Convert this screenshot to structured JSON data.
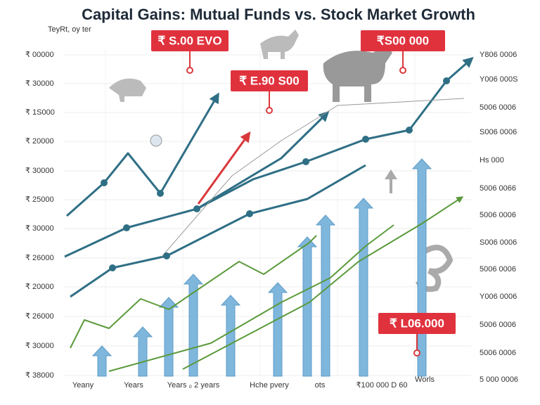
{
  "header": {
    "title": "Capital Gains: Mutual Funds vs. Stock Market Growth",
    "subtitle": "TeyRt, oy ter"
  },
  "left_labels": [
    "₹ 00000",
    "₹ 30000",
    "₹ 1S000",
    "₹ 20000",
    "₹ 30000",
    "₹ 25000",
    "₹ 30000",
    "₹ 26000",
    "₹ 20000",
    "₹ 26000",
    "₹ 30000",
    "₹ 38000"
  ],
  "right_labels": [
    "Y806 0006",
    "Y006 000S",
    "5006 0006",
    "S006 0006",
    "Hs 000",
    "5006 0066",
    "5006 0006",
    "S006 0006",
    "5006 0006",
    "Y006 0006",
    "5006 0006",
    "5006 0006",
    "5 000 0006"
  ],
  "bottom_labels": [
    "Yeany",
    "Years",
    "Years ₀ 2 years",
    "Hche pvery",
    "ots",
    "₹100 000 D 60",
    "Worls"
  ],
  "callouts": [
    "₹ S.00 EVO",
    "₹ E.90 S00",
    "₹S00 000",
    "₹ L06.000"
  ]
}
